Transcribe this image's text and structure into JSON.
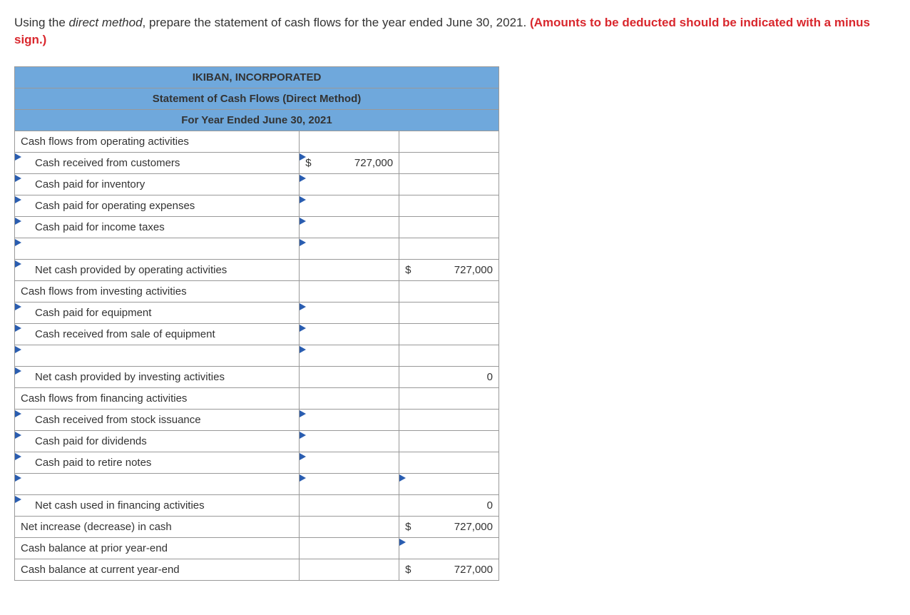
{
  "instruction": {
    "prefix": "Using the ",
    "method": "direct method",
    "middle": ", prepare the statement of cash flows for the year ended June 30, 2021. ",
    "warning": "(Amounts to be deducted should be indicated with a minus sign.)"
  },
  "table": {
    "header1": "IKIBAN, INCORPORATED",
    "header2": "Statement of Cash Flows (Direct Method)",
    "header3": "For Year Ended June 30, 2021",
    "rows": {
      "operating_header": "Cash flows from operating activities",
      "cash_received_customers": "Cash received from customers",
      "cash_received_customers_value": "727,000",
      "cash_paid_inventory": "Cash paid for inventory",
      "cash_paid_operating": "Cash paid for operating expenses",
      "cash_paid_taxes": "Cash paid for income taxes",
      "net_operating": "Net cash provided by operating activities",
      "net_operating_value": "727,000",
      "investing_header": "Cash flows from investing activities",
      "cash_paid_equipment": "Cash paid for equipment",
      "cash_received_equipment": "Cash received from sale of equipment",
      "net_investing": "Net cash provided by investing activities",
      "net_investing_value": "0",
      "financing_header": "Cash flows from financing activities",
      "cash_stock_issuance": "Cash received from stock issuance",
      "cash_dividends": "Cash paid for dividends",
      "cash_retire_notes": "Cash paid to retire notes",
      "net_financing": "Net cash used in financing activities",
      "net_financing_value": "0",
      "net_increase": "Net increase (decrease) in cash",
      "net_increase_value": "727,000",
      "prior_year": "Cash balance at prior year-end",
      "current_year": "Cash balance at current year-end",
      "current_year_value": "727,000",
      "dollar_sign": "$"
    }
  },
  "colors": {
    "header_bg": "#6fa8dc",
    "triangle": "#2a5db0",
    "warning_text": "#d9272d",
    "border": "#999999"
  }
}
